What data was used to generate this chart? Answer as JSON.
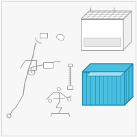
{
  "background_color": "#f7f7f7",
  "border_color": "#cccccc",
  "tray_fill": "#4bbfe0",
  "tray_stroke": "#1a8ab0",
  "part_stroke": "#999999",
  "part_lw": 0.7,
  "tray_lw": 1.0,
  "fig_width": 2.0,
  "fig_height": 2.0,
  "dpi": 100
}
